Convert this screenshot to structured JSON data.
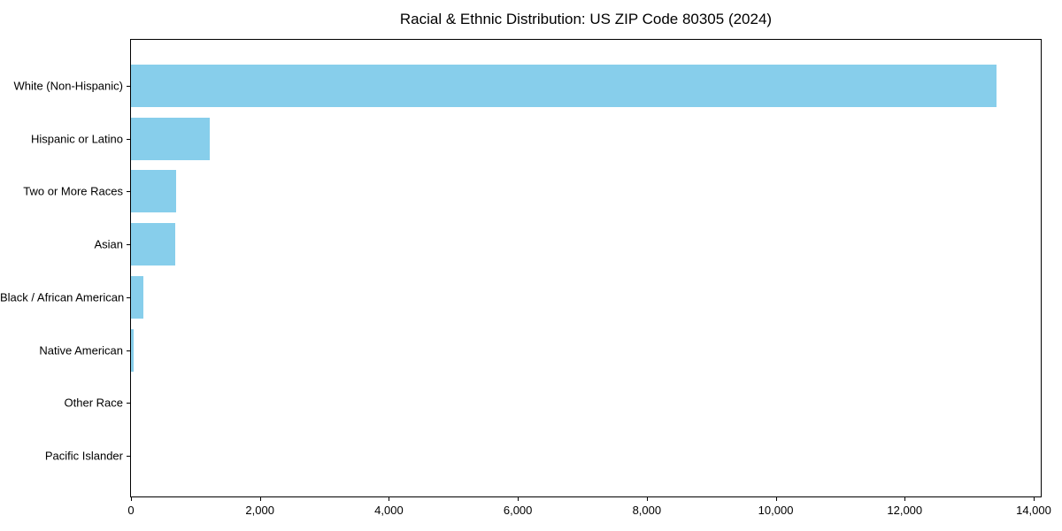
{
  "chart_data": {
    "type": "bar",
    "orientation": "horizontal",
    "title": "Racial & Ethnic Distribution: US ZIP Code 80305 (2024)",
    "categories": [
      "White (Non-Hispanic)",
      "Hispanic or Latino",
      "Two or More Races",
      "Asian",
      "Black / African American",
      "Native American",
      "Other Race",
      "Pacific Islander"
    ],
    "values": [
      13430,
      1225,
      705,
      685,
      190,
      45,
      0,
      0
    ],
    "xlabel": "",
    "ylabel": "",
    "xlim": [
      0,
      14110
    ],
    "x_ticks": [
      0,
      2000,
      4000,
      6000,
      8000,
      10000,
      12000,
      14000
    ],
    "x_tick_labels": [
      "0",
      "2,000",
      "4,000",
      "6,000",
      "8,000",
      "10,000",
      "12,000",
      "14,000"
    ],
    "bar_color": "#87CEEB",
    "grid": false,
    "legend_position": "none"
  }
}
